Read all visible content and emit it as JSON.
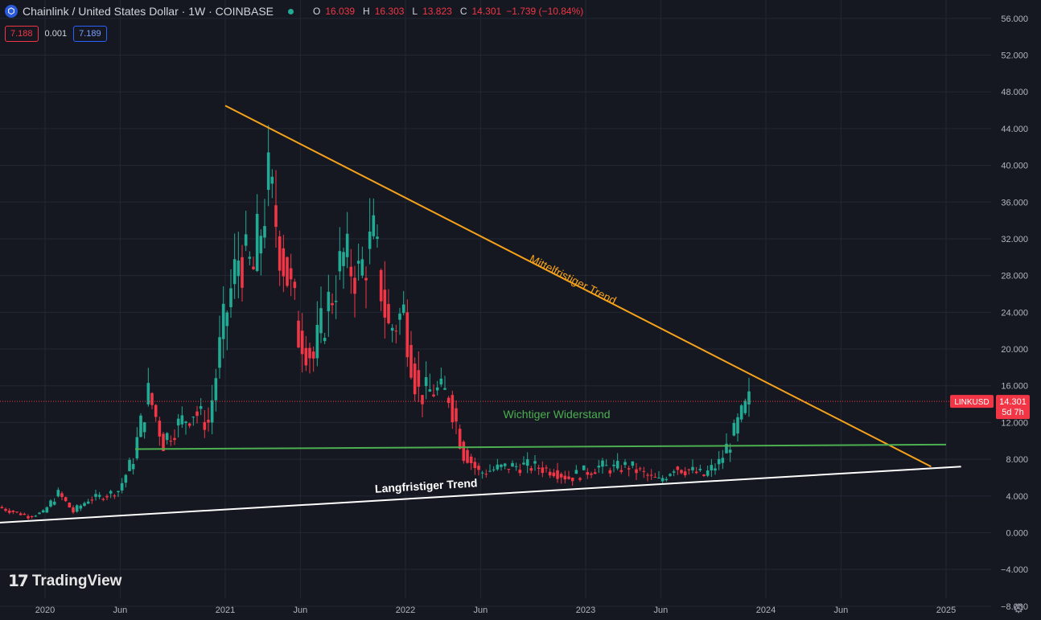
{
  "header": {
    "icon": "chainlink-icon",
    "title": "Chainlink / United States Dollar · 1W · COINBASE",
    "ohlc": {
      "o_label": "O",
      "o": "16.039",
      "h_label": "H",
      "h": "16.303",
      "l_label": "L",
      "l": "13.823",
      "c_label": "C",
      "c": "14.301",
      "change": "−1.739 (−10.84%)"
    }
  },
  "quote": {
    "bid": "7.188",
    "spread": "0.001",
    "ask": "7.189"
  },
  "brand": {
    "logo": "17",
    "name": "TradingView"
  },
  "price_tag": {
    "symbol": "LINKUSD",
    "price": "14.301",
    "countdown": "5d 7h"
  },
  "settings_icon": "gear-icon",
  "colors": {
    "background": "#151821",
    "up": "#22ab94",
    "down": "#f23645",
    "medium_trend": "#f7a21b",
    "resistance": "#4caf50",
    "long_trend": "#ffffff"
  },
  "chart_data": {
    "type": "candlestick",
    "title": "Chainlink / United States Dollar · 1W · COINBASE",
    "y_ticks": [
      "56.000",
      "52.000",
      "48.000",
      "44.000",
      "40.000",
      "36.000",
      "32.000",
      "28.000",
      "24.000",
      "20.000",
      "16.000",
      "12.000",
      "8.000",
      "4.000",
      "0.000",
      "−4.000",
      "−8.000"
    ],
    "ylim": [
      -9.5,
      58
    ],
    "x_ticks": [
      "2020",
      "Jun",
      "2021",
      "Jun",
      "2022",
      "Jun",
      "2023",
      "Jun",
      "2024",
      "Jun",
      "2025"
    ],
    "x_tick_dates": [
      "2020-01",
      "2020-06",
      "2021-01",
      "2021-06",
      "2022-01",
      "2022-06",
      "2023-01",
      "2023-06",
      "2024-01",
      "2024-06",
      "2025-01"
    ],
    "xlim": [
      "2019-10",
      "2025-04"
    ],
    "grid": true,
    "current_price": 14.301,
    "series": [
      {
        "date": "2019-10",
        "close": 2.8
      },
      {
        "date": "2019-11",
        "close": 2.3
      },
      {
        "date": "2019-12",
        "close": 1.8
      },
      {
        "date": "2020-01",
        "close": 2.2
      },
      {
        "date": "2020-02",
        "close": 4.3
      },
      {
        "date": "2020-03",
        "close": 2.3
      },
      {
        "date": "2020-04",
        "close": 3.6
      },
      {
        "date": "2020-05",
        "close": 4.0
      },
      {
        "date": "2020-06",
        "close": 4.6
      },
      {
        "date": "2020-07",
        "close": 8.1
      },
      {
        "date": "2020-08",
        "close": 15.2
      },
      {
        "date": "2020-09",
        "close": 10.1
      },
      {
        "date": "2020-10",
        "close": 11.8
      },
      {
        "date": "2020-11",
        "close": 13.2
      },
      {
        "date": "2020-12",
        "close": 12.0
      },
      {
        "date": "2021-01",
        "close": 22.5
      },
      {
        "date": "2021-02",
        "close": 30.0
      },
      {
        "date": "2021-03",
        "close": 28.5
      },
      {
        "date": "2021-04",
        "close": 38.0
      },
      {
        "date": "2021-05",
        "close": 30.0
      },
      {
        "date": "2021-06",
        "close": 22.0
      },
      {
        "date": "2021-07",
        "close": 19.0
      },
      {
        "date": "2021-08",
        "close": 25.0
      },
      {
        "date": "2021-09",
        "close": 30.0
      },
      {
        "date": "2021-10",
        "close": 28.0
      },
      {
        "date": "2021-11",
        "close": 32.0
      },
      {
        "date": "2021-12",
        "close": 22.0
      },
      {
        "date": "2022-01",
        "close": 24.0
      },
      {
        "date": "2022-02",
        "close": 15.0
      },
      {
        "date": "2022-03",
        "close": 15.5
      },
      {
        "date": "2022-04",
        "close": 15.0
      },
      {
        "date": "2022-05",
        "close": 9.0
      },
      {
        "date": "2022-06",
        "close": 6.5
      },
      {
        "date": "2022-07",
        "close": 6.9
      },
      {
        "date": "2022-08",
        "close": 7.2
      },
      {
        "date": "2022-09",
        "close": 7.3
      },
      {
        "date": "2022-10",
        "close": 7.1
      },
      {
        "date": "2022-11",
        "close": 6.8
      },
      {
        "date": "2022-12",
        "close": 6.0
      },
      {
        "date": "2023-01",
        "close": 6.6
      },
      {
        "date": "2023-02",
        "close": 7.2
      },
      {
        "date": "2023-03",
        "close": 7.0
      },
      {
        "date": "2023-04",
        "close": 7.3
      },
      {
        "date": "2023-05",
        "close": 6.3
      },
      {
        "date": "2023-06",
        "close": 5.6
      },
      {
        "date": "2023-07",
        "close": 7.2
      },
      {
        "date": "2023-08",
        "close": 6.8
      },
      {
        "date": "2023-09",
        "close": 6.2
      },
      {
        "date": "2023-10",
        "close": 7.6
      },
      {
        "date": "2023-11",
        "close": 10.8
      },
      {
        "date": "2023-12",
        "close": 14.3
      }
    ],
    "annotations": [
      {
        "label": "Mittelfristiger Trend",
        "type": "trendline",
        "from": {
          "date": "2021-01",
          "value": 46.5
        },
        "to": {
          "date": "2024-12",
          "value": 7.2
        }
      },
      {
        "label": "Wichtiger Widerstand",
        "type": "trendline",
        "from": {
          "date": "2020-07",
          "value": 9.1
        },
        "to": {
          "date": "2025-01",
          "value": 9.6
        }
      },
      {
        "label": "Langfristiger Trend",
        "type": "trendline",
        "from": {
          "date": "2019-10",
          "value": 1.1
        },
        "to": {
          "date": "2025-02",
          "value": 7.2
        }
      }
    ]
  }
}
